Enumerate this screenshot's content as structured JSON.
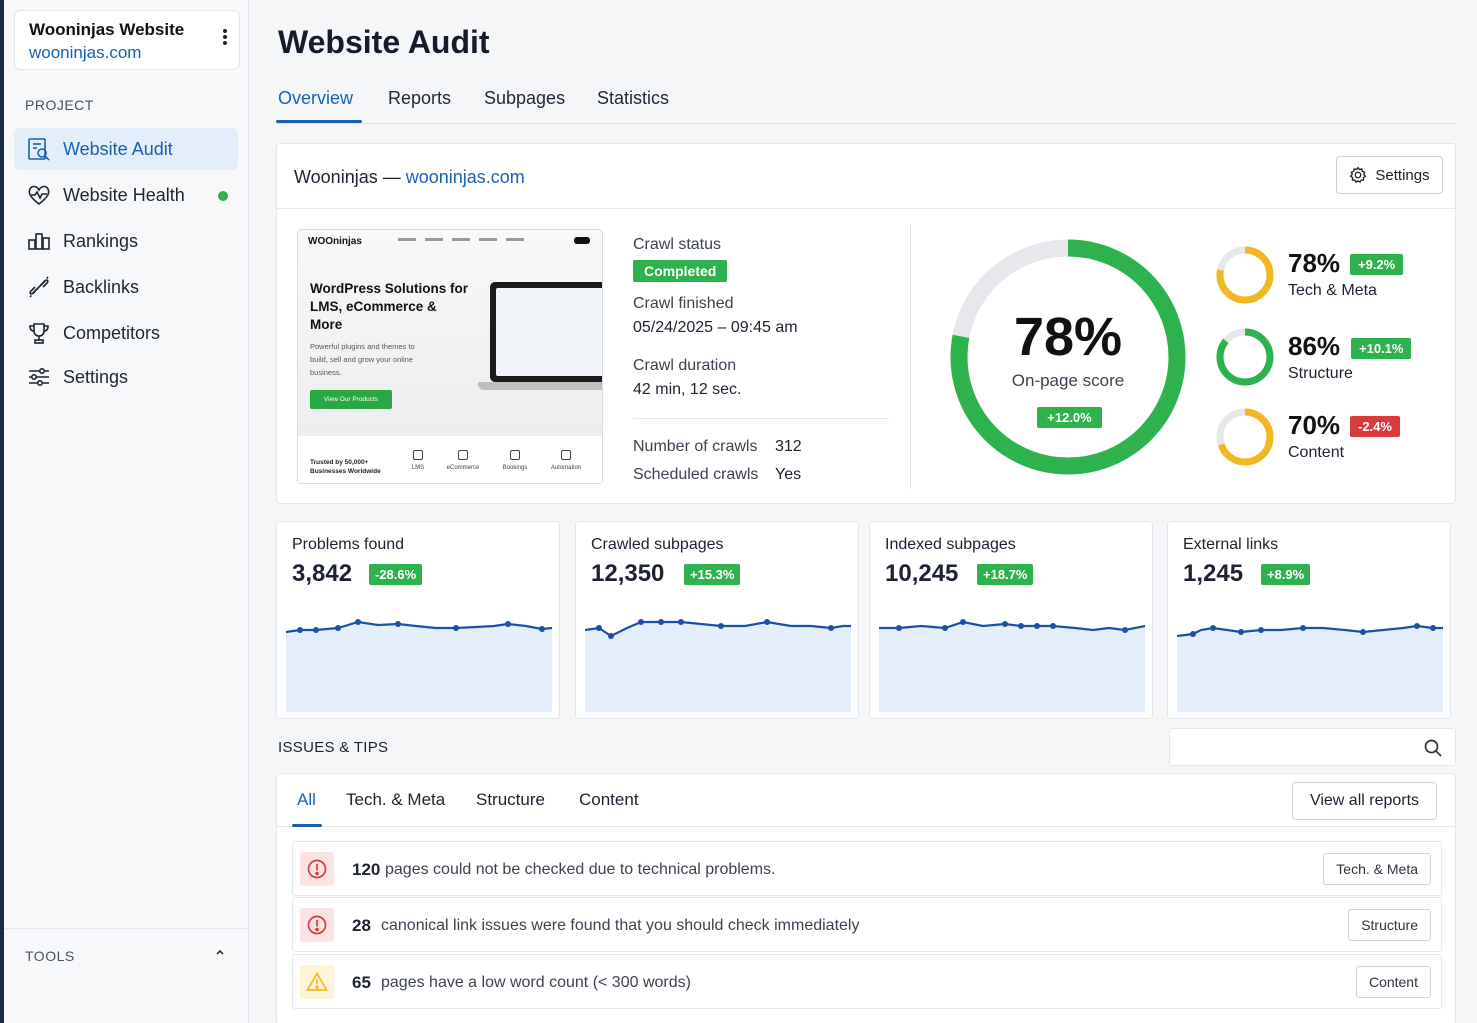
{
  "project": {
    "name": "Wooninjas Website",
    "url": "wooninjas.com"
  },
  "sidebar": {
    "section_label": "PROJECT",
    "items": [
      {
        "label": "Website Audit",
        "icon": "audit-icon"
      },
      {
        "label": "Website Health",
        "icon": "heart-pulse-icon"
      },
      {
        "label": "Rankings",
        "icon": "bar-chart-icon"
      },
      {
        "label": "Backlinks",
        "icon": "link-icon"
      },
      {
        "label": "Competitors",
        "icon": "trophy-icon"
      },
      {
        "label": "Settings",
        "icon": "sliders-icon"
      }
    ],
    "tools_label": "TOOLS"
  },
  "page": {
    "title": "Website Audit"
  },
  "tabs": [
    "Overview",
    "Reports",
    "Subpages",
    "Statistics"
  ],
  "summary": {
    "site_name": "Wooninjas",
    "separator": " — ",
    "site_url": "wooninjas.com",
    "settings_label": "Settings",
    "thumbnail": {
      "logo": "WOOninjas",
      "headline": "WordPress Solutions for LMS, eCommerce & More",
      "sub": "Powerful plugins and themes to build, sell and grow your online business.",
      "cta": "View Our Products",
      "trust": "Trusted by 50,000+ Businesses Worldwide",
      "categories": [
        "LMS",
        "eCommerce",
        "Bookings",
        "Automation"
      ]
    },
    "crawl_status_label": "Crawl status",
    "crawl_status": "Completed",
    "crawl_finished_label": "Crawl finished",
    "crawl_finished": "05/24/2025 – 09:45 am",
    "crawl_duration_label": "Crawl duration",
    "crawl_duration": "42 min, 12 sec.",
    "crawls_label": "Number of crawls",
    "crawls": "312",
    "scheduled_label": "Scheduled crawls",
    "scheduled": "Yes",
    "score": {
      "value": "78%",
      "fraction": 0.78,
      "label": "On-page score",
      "change": "+12.0%"
    },
    "subscores": [
      {
        "value": "78%",
        "fraction": 0.78,
        "change": "+9.2%",
        "label": "Tech & Meta",
        "positive": true
      },
      {
        "value": "86%",
        "fraction": 0.86,
        "change": "+10.1%",
        "label": "Structure",
        "positive": true
      },
      {
        "value": "70%",
        "fraction": 0.7,
        "change": "-2.4%",
        "label": "Content",
        "positive": false
      }
    ]
  },
  "metrics": [
    {
      "title": "Problems found",
      "value": "3,842",
      "change": "-28.6%"
    },
    {
      "title": "Crawled subpages",
      "value": "12,350",
      "change": "+15.3%"
    },
    {
      "title": "Indexed subpages",
      "value": "10,245",
      "change": "+18.7%"
    },
    {
      "title": "External links",
      "value": "1,245",
      "change": "+8.9%"
    }
  ],
  "issues": {
    "section_label": "ISSUES & TIPS",
    "tabs": [
      "All",
      "Tech. & Meta",
      "Structure",
      "Content"
    ],
    "view_all": "View all reports",
    "rows": [
      {
        "count": "120",
        "text": "pages could not be checked due to technical problems.",
        "tag": "Tech. & Meta",
        "level": "error"
      },
      {
        "count": "28",
        "text": "canonical link issues were found that you should check immediately",
        "tag": "Structure",
        "level": "error"
      },
      {
        "count": "65",
        "text": "pages have a low word count (< 300 words)",
        "tag": "Content",
        "level": "warning"
      }
    ]
  },
  "colors": {
    "accent": "#1a5fb4",
    "good": "#2eb24e",
    "warn": "#f2b824",
    "bad": "#d93a3a"
  }
}
